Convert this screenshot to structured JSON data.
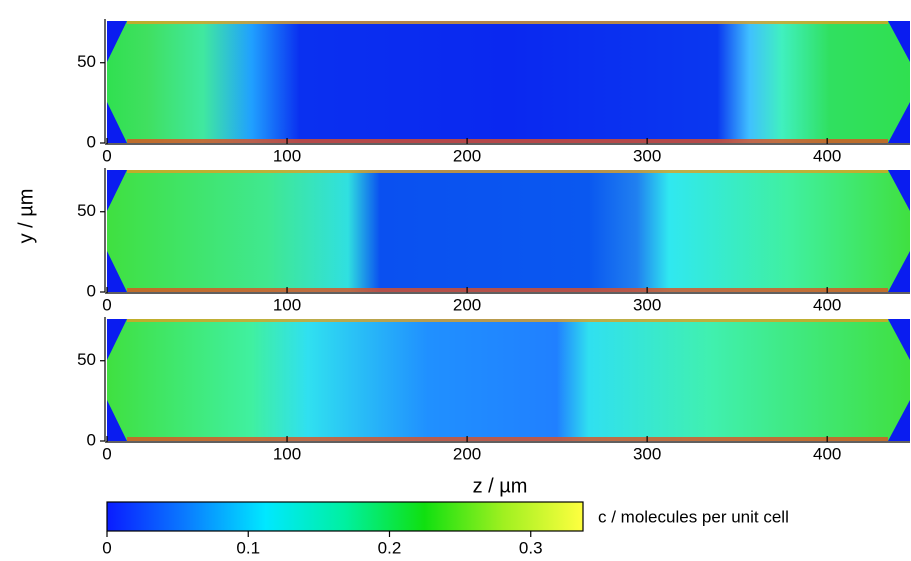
{
  "chart_data": [
    {
      "type": "heatmap",
      "xlim": [
        0,
        446
      ],
      "ylim": [
        0,
        76
      ],
      "xticks": [
        0,
        100,
        200,
        300,
        400
      ],
      "yticks": [
        0,
        50
      ]
    },
    {
      "type": "heatmap",
      "xlim": [
        0,
        446
      ],
      "ylim": [
        0,
        76
      ],
      "xticks": [
        0,
        100,
        200,
        300,
        400
      ],
      "yticks": [
        0,
        50
      ],
      "ylabel": "y / µm"
    },
    {
      "type": "heatmap",
      "xlim": [
        0,
        446
      ],
      "ylim": [
        0,
        76
      ],
      "xticks": [
        0,
        100,
        200,
        300,
        400
      ],
      "yticks": [
        0,
        50
      ],
      "xlabel": "z / µm"
    },
    {
      "type": "colorbar",
      "xlim": [
        0,
        0.337
      ],
      "xticks": [
        0,
        0.1,
        0.2,
        0.3
      ],
      "label": "c / molecules per unit cell",
      "colors": [
        "#0a1cff",
        "#0a7cff",
        "#00e8ff",
        "#00f0a0",
        "#10e010",
        "#a0f020",
        "#ffff40"
      ]
    }
  ]
}
